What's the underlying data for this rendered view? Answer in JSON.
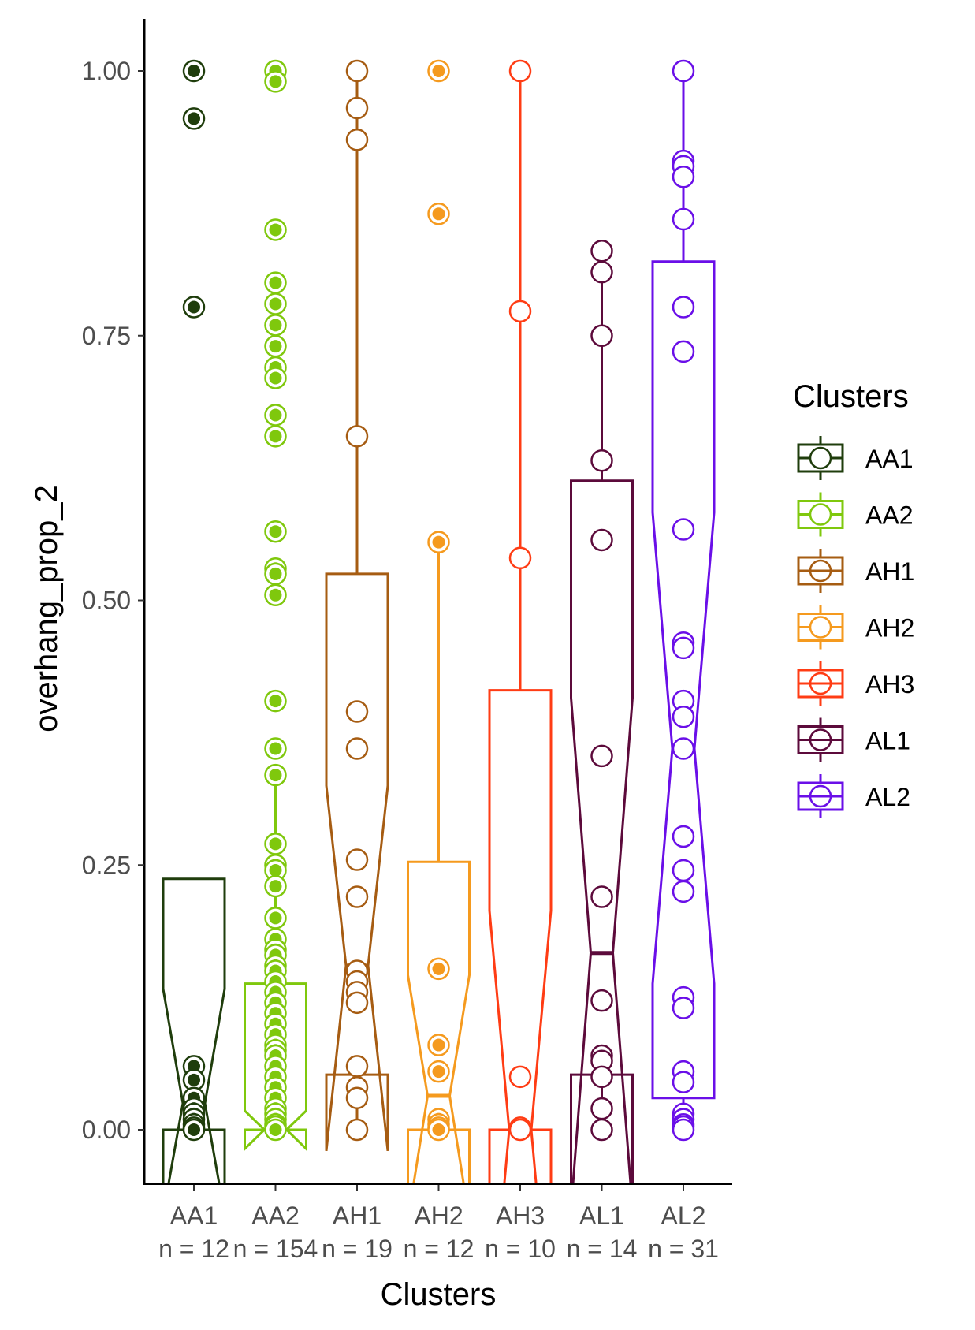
{
  "chart_data": {
    "type": "box",
    "xlabel": "Clusters",
    "ylabel": "overhang_prop_2",
    "ylim": [
      -0.048,
      1.05
    ],
    "yticks": [
      0.0,
      0.25,
      0.5,
      0.75,
      1.0
    ],
    "ytick_labels": [
      "0.00",
      "0.25",
      "0.50",
      "0.75",
      "1.00"
    ],
    "grid": false,
    "notched": true,
    "legend": {
      "title": "Clusters",
      "position": "right"
    },
    "categories": [
      "AA1",
      "AA2",
      "AH1",
      "AH2",
      "AH3",
      "AL1",
      "AL2"
    ],
    "category_sublabels": [
      "n = 12",
      "n = 154",
      "n = 19",
      "n = 12",
      "n = 10",
      "n = 14",
      "n = 31"
    ],
    "series": [
      {
        "name": "AA1",
        "color": "#1f3d0c",
        "filled": true,
        "box": {
          "q1": 0.0,
          "median": 0.025,
          "q3": 0.237,
          "whisker_low": 0.0,
          "whisker_high": 0.237,
          "notch_low": -0.08,
          "notch_high": 0.133
        },
        "points": [
          1.0,
          0.955,
          0.777,
          0.06,
          0.047,
          0.03,
          0.02,
          0.015,
          0.01,
          0.005,
          0.002,
          0.0
        ]
      },
      {
        "name": "AA2",
        "color": "#7fc80d",
        "filled": true,
        "box": {
          "q1": 0.0,
          "median": 0.0,
          "q3": 0.138,
          "whisker_low": 0.0,
          "whisker_high": 0.33,
          "notch_low": -0.018,
          "notch_high": 0.018
        },
        "points": [
          1.0,
          0.99,
          0.85,
          0.8,
          0.78,
          0.76,
          0.74,
          0.72,
          0.71,
          0.675,
          0.655,
          0.565,
          0.53,
          0.525,
          0.505,
          0.405,
          0.36,
          0.335,
          0.27,
          0.25,
          0.245,
          0.23,
          0.2,
          0.18,
          0.17,
          0.165,
          0.155,
          0.15,
          0.14,
          0.13,
          0.12,
          0.11,
          0.1,
          0.09,
          0.08,
          0.075,
          0.07,
          0.06,
          0.05,
          0.04,
          0.03,
          0.02,
          0.015,
          0.01,
          0.005,
          0.003,
          0.0
        ]
      },
      {
        "name": "AH1",
        "color": "#a65c12",
        "filled": false,
        "box": {
          "q1": 0.052,
          "median": 0.155,
          "q3": 0.525,
          "whisker_low": 0.0,
          "whisker_high": 1.0,
          "notch_low": -0.02,
          "notch_high": 0.325
        },
        "points": [
          1.0,
          0.965,
          0.935,
          0.655,
          0.395,
          0.36,
          0.255,
          0.22,
          0.15,
          0.14,
          0.13,
          0.12,
          0.06,
          0.04,
          0.03,
          0.0
        ]
      },
      {
        "name": "AH2",
        "color": "#f59a1e",
        "filled": true,
        "box": {
          "q1": 0.0,
          "median": 0.032,
          "q3": 0.253,
          "whisker_low": 0.0,
          "whisker_high": 0.555,
          "notch_low": -0.085,
          "notch_high": 0.146
        },
        "points": [
          1.0,
          0.865,
          0.555,
          0.152,
          0.08,
          0.055,
          0.01,
          0.005,
          0.002,
          0.0
        ]
      },
      {
        "name": "AH3",
        "color": "#ff3c14",
        "filled": false,
        "box": {
          "q1": 0.0,
          "median": 0.0,
          "q3": 0.415,
          "whisker_low": 0.0,
          "whisker_high": 1.0,
          "notch_low": -0.207,
          "notch_high": 0.207
        },
        "points": [
          1.0,
          0.773,
          0.54,
          0.05,
          0.002,
          0.0
        ]
      },
      {
        "name": "AL1",
        "color": "#5c0a3b",
        "filled": false,
        "box": {
          "q1": 0.052,
          "median": 0.167,
          "q3": 0.613,
          "whisker_low": 0.0,
          "whisker_high": 0.83,
          "notch_low": -0.075,
          "notch_high": 0.408
        },
        "points": [
          0.83,
          0.81,
          0.75,
          0.632,
          0.557,
          0.353,
          0.22,
          0.122,
          0.07,
          0.065,
          0.05,
          0.02,
          0.0
        ]
      },
      {
        "name": "AL2",
        "color": "#6a0fe8",
        "filled": false,
        "box": {
          "q1": 0.03,
          "median": 0.36,
          "q3": 0.82,
          "whisker_low": 0.0,
          "whisker_high": 1.0,
          "notch_low": 0.138,
          "notch_high": 0.583
        },
        "points": [
          1.0,
          0.915,
          0.91,
          0.9,
          0.86,
          0.777,
          0.735,
          0.567,
          0.46,
          0.455,
          0.405,
          0.39,
          0.36,
          0.277,
          0.245,
          0.225,
          0.125,
          0.115,
          0.055,
          0.045,
          0.015,
          0.01,
          0.005,
          0.003,
          0.0
        ]
      }
    ]
  }
}
